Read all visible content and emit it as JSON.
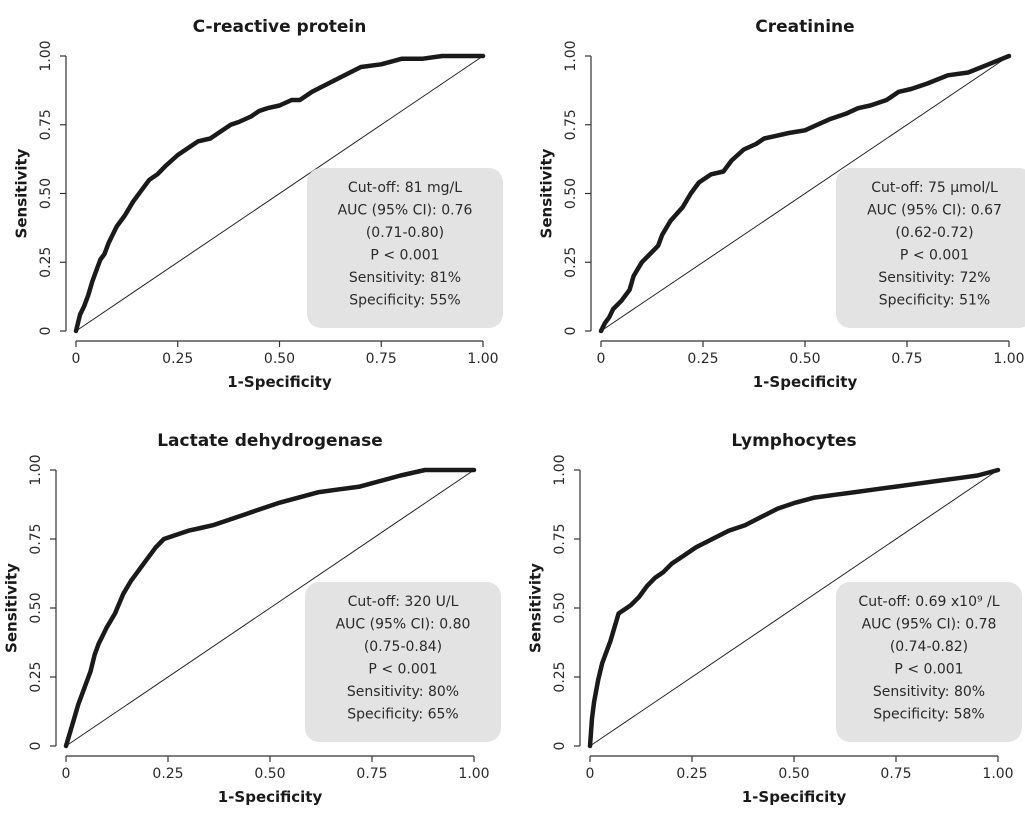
{
  "chart_data": [
    {
      "type": "line",
      "title": "C-reactive protein",
      "xlabel": "1-Specificity",
      "ylabel": "Sensitivity",
      "xlim": [
        0,
        1
      ],
      "ylim": [
        0,
        1
      ],
      "xticks": [
        "0",
        "0.25",
        "0.50",
        "0.75",
        "1.00"
      ],
      "yticks": [
        "0",
        "0.25",
        "0.50",
        "0.75",
        "1.00"
      ],
      "reference_line": true,
      "box_lines": [
        "Cut-off: 81 mg/L",
        "AUC (95% CI): 0.76",
        "(0.71-0.80)",
        "P < 0.001",
        "Sensitivity: 81%",
        "Specificity: 55%"
      ],
      "series": [
        {
          "x": [
            0,
            0.01,
            0.02,
            0.03,
            0.04,
            0.05,
            0.06,
            0.07,
            0.08,
            0.1,
            0.12,
            0.14,
            0.16,
            0.18,
            0.2,
            0.22,
            0.25,
            0.28,
            0.3,
            0.33,
            0.36,
            0.38,
            0.4,
            0.43,
            0.45,
            0.47,
            0.5,
            0.53,
            0.55,
            0.58,
            0.62,
            0.66,
            0.7,
            0.75,
            0.8,
            0.85,
            0.9,
            0.95,
            1.0
          ],
          "y": [
            0,
            0.06,
            0.09,
            0.13,
            0.18,
            0.22,
            0.26,
            0.28,
            0.32,
            0.38,
            0.42,
            0.47,
            0.51,
            0.55,
            0.57,
            0.6,
            0.64,
            0.67,
            0.69,
            0.7,
            0.73,
            0.75,
            0.76,
            0.78,
            0.8,
            0.81,
            0.82,
            0.84,
            0.84,
            0.87,
            0.9,
            0.93,
            0.96,
            0.97,
            0.99,
            0.99,
            1.0,
            1.0,
            1.0
          ]
        }
      ]
    },
    {
      "type": "line",
      "title": "Creatinine",
      "xlabel": "1-Specificity",
      "ylabel": "Sensitivity",
      "xlim": [
        0,
        1
      ],
      "ylim": [
        0,
        1
      ],
      "xticks": [
        "0",
        "0.25",
        "0.50",
        "0.75",
        "1.00"
      ],
      "yticks": [
        "0",
        "0.25",
        "0.50",
        "0.75",
        "1.00"
      ],
      "reference_line": true,
      "box_lines": [
        "Cut-off: 75 µmol/L",
        "AUC (95% CI): 0.67",
        "(0.62-0.72)",
        "P < 0.001",
        "Sensitivity: 72%",
        "Specificity: 51%"
      ],
      "series": [
        {
          "x": [
            0,
            0.01,
            0.02,
            0.03,
            0.05,
            0.07,
            0.08,
            0.1,
            0.12,
            0.14,
            0.15,
            0.17,
            0.2,
            0.22,
            0.24,
            0.27,
            0.3,
            0.32,
            0.35,
            0.38,
            0.4,
            0.43,
            0.46,
            0.5,
            0.53,
            0.56,
            0.6,
            0.63,
            0.66,
            0.7,
            0.73,
            0.76,
            0.8,
            0.85,
            0.9,
            0.95,
            1.0
          ],
          "y": [
            0,
            0.03,
            0.05,
            0.08,
            0.11,
            0.15,
            0.2,
            0.25,
            0.28,
            0.31,
            0.35,
            0.4,
            0.45,
            0.5,
            0.54,
            0.57,
            0.58,
            0.62,
            0.66,
            0.68,
            0.7,
            0.71,
            0.72,
            0.73,
            0.75,
            0.77,
            0.79,
            0.81,
            0.82,
            0.84,
            0.87,
            0.88,
            0.9,
            0.93,
            0.94,
            0.97,
            1.0
          ]
        }
      ]
    },
    {
      "type": "line",
      "title": "Lactate dehydrogenase",
      "xlabel": "1-Specificity",
      "ylabel": "Sensitivity",
      "xlim": [
        0,
        1
      ],
      "ylim": [
        0,
        1
      ],
      "xticks": [
        "0",
        "0.25",
        "0.50",
        "0.75",
        "1.00"
      ],
      "yticks": [
        "0",
        "0.25",
        "0.50",
        "0.75",
        "1.00"
      ],
      "reference_line": true,
      "box_lines": [
        "Cut-off: 320 U/L",
        "AUC (95% CI): 0.80",
        "(0.75-0.84)",
        "P < 0.001",
        "Sensitivity: 80%",
        "Specificity: 65%"
      ],
      "series": [
        {
          "x": [
            0,
            0.01,
            0.02,
            0.03,
            0.04,
            0.05,
            0.06,
            0.07,
            0.08,
            0.09,
            0.1,
            0.12,
            0.14,
            0.16,
            0.18,
            0.2,
            0.22,
            0.24,
            0.26,
            0.28,
            0.3,
            0.33,
            0.36,
            0.4,
            0.44,
            0.48,
            0.52,
            0.57,
            0.62,
            0.67,
            0.72,
            0.77,
            0.82,
            0.88,
            0.94,
            1.0
          ],
          "y": [
            0,
            0.05,
            0.1,
            0.15,
            0.19,
            0.23,
            0.27,
            0.33,
            0.37,
            0.4,
            0.43,
            0.48,
            0.55,
            0.6,
            0.64,
            0.68,
            0.72,
            0.75,
            0.76,
            0.77,
            0.78,
            0.79,
            0.8,
            0.82,
            0.84,
            0.86,
            0.88,
            0.9,
            0.92,
            0.93,
            0.94,
            0.96,
            0.98,
            1.0,
            1.0,
            1.0
          ]
        }
      ]
    },
    {
      "type": "line",
      "title": "Lymphocytes",
      "xlabel": "1-Specificity",
      "ylabel": "Sensitivity",
      "xlim": [
        0,
        1
      ],
      "ylim": [
        0,
        1
      ],
      "xticks": [
        "0",
        "0.25",
        "0.50",
        "0.75",
        "1.00"
      ],
      "yticks": [
        "0",
        "0.25",
        "0.50",
        "0.75",
        "1.00"
      ],
      "reference_line": true,
      "box_lines": [
        "Cut-off: 0.69 x10⁹ /L",
        "AUC (95% CI): 0.78",
        "(0.74-0.82)",
        "P < 0.001",
        "Sensitivity: 80%",
        "Specificity: 58%"
      ],
      "series": [
        {
          "x": [
            0,
            0.005,
            0.01,
            0.02,
            0.03,
            0.05,
            0.06,
            0.07,
            0.08,
            0.09,
            0.1,
            0.12,
            0.14,
            0.16,
            0.18,
            0.2,
            0.23,
            0.26,
            0.3,
            0.34,
            0.38,
            0.42,
            0.46,
            0.5,
            0.55,
            0.6,
            0.65,
            0.7,
            0.75,
            0.8,
            0.85,
            0.9,
            0.95,
            1.0
          ],
          "y": [
            0,
            0.1,
            0.16,
            0.24,
            0.3,
            0.38,
            0.43,
            0.48,
            0.49,
            0.5,
            0.51,
            0.54,
            0.58,
            0.61,
            0.63,
            0.66,
            0.69,
            0.72,
            0.75,
            0.78,
            0.8,
            0.83,
            0.86,
            0.88,
            0.9,
            0.91,
            0.92,
            0.93,
            0.94,
            0.95,
            0.96,
            0.97,
            0.98,
            1.0
          ]
        }
      ]
    }
  ]
}
